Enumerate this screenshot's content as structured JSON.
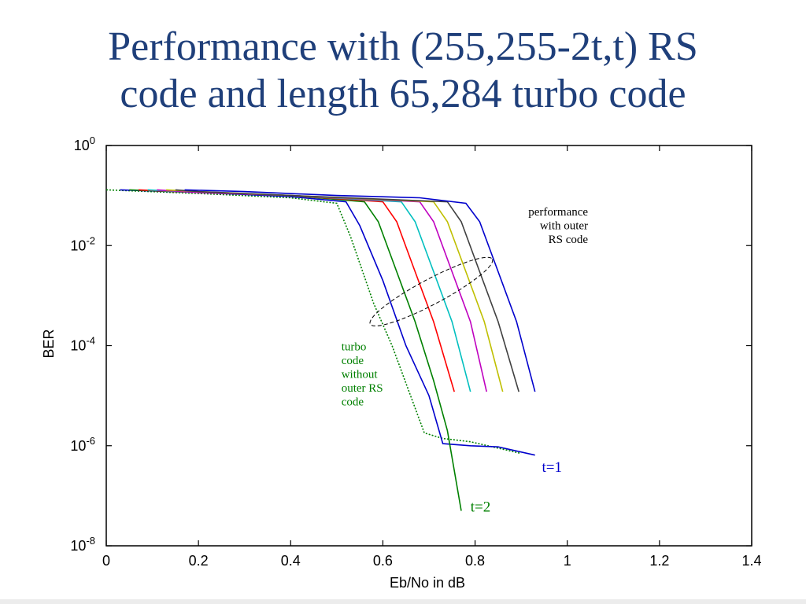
{
  "slide": {
    "title_line1": "Performance with (255,255-2t,t) RS",
    "title_line2": "code and length 65,284 turbo code"
  },
  "colors": {
    "title": "#1f3f7a",
    "turbo_only": "#008000"
  },
  "chart_data": {
    "type": "line",
    "xlabel": "Eb/No in dB",
    "ylabel": "BER",
    "xlim": [
      0,
      1.4
    ],
    "yscale": "log",
    "ylim": [
      1e-08,
      1
    ],
    "xticks": [
      "0",
      "0.2",
      "0.4",
      "0.6",
      "0.8",
      "1",
      "1.2",
      "1.4"
    ],
    "yticks": [
      {
        "base": "10",
        "exp": "0"
      },
      {
        "base": "10",
        "exp": "-2"
      },
      {
        "base": "10",
        "exp": "-4"
      },
      {
        "base": "10",
        "exp": "-6"
      },
      {
        "base": "10",
        "exp": "-8"
      }
    ],
    "grid": false,
    "series": [
      {
        "color": "#008000",
        "dash": "dotted",
        "points": [
          [
            0.0,
            0.13
          ],
          [
            0.2,
            0.11
          ],
          [
            0.4,
            0.09
          ],
          [
            0.5,
            0.07
          ],
          [
            0.53,
            0.015
          ],
          [
            0.58,
            0.0007
          ],
          [
            0.62,
            0.0001
          ],
          [
            0.66,
            1e-05
          ],
          [
            0.69,
            1.8e-06
          ],
          [
            0.73,
            1.4e-06
          ],
          [
            0.79,
            1.2e-06
          ],
          [
            0.9,
            7e-07
          ]
        ]
      },
      {
        "color": "#0000cc",
        "dash": "solid",
        "points": [
          [
            0.03,
            0.13
          ],
          [
            0.2,
            0.115
          ],
          [
            0.4,
            0.095
          ],
          [
            0.52,
            0.075
          ],
          [
            0.55,
            0.025
          ],
          [
            0.6,
            0.002
          ],
          [
            0.65,
            0.0001
          ],
          [
            0.7,
            1e-05
          ],
          [
            0.73,
            1.1e-06
          ],
          [
            0.79,
            1e-06
          ],
          [
            0.85,
            9.5e-07
          ],
          [
            0.93,
            6.5e-07
          ]
        ]
      },
      {
        "color": "#008000",
        "dash": "solid",
        "points": [
          [
            0.05,
            0.13
          ],
          [
            0.2,
            0.115
          ],
          [
            0.4,
            0.1
          ],
          [
            0.56,
            0.075
          ],
          [
            0.59,
            0.03
          ],
          [
            0.63,
            0.003
          ],
          [
            0.67,
            0.0003
          ],
          [
            0.71,
            2e-05
          ],
          [
            0.74,
            2e-06
          ],
          [
            0.77,
            5e-08
          ]
        ]
      },
      {
        "color": "#ff0000",
        "dash": "solid",
        "points": [
          [
            0.07,
            0.13
          ],
          [
            0.2,
            0.115
          ],
          [
            0.4,
            0.1
          ],
          [
            0.6,
            0.075
          ],
          [
            0.63,
            0.03
          ],
          [
            0.67,
            0.003
          ],
          [
            0.71,
            0.0003
          ],
          [
            0.755,
            1.2e-05
          ]
        ]
      },
      {
        "color": "#00bfbf",
        "dash": "solid",
        "points": [
          [
            0.09,
            0.13
          ],
          [
            0.2,
            0.115
          ],
          [
            0.4,
            0.1
          ],
          [
            0.64,
            0.075
          ],
          [
            0.67,
            0.03
          ],
          [
            0.71,
            0.003
          ],
          [
            0.75,
            0.0003
          ],
          [
            0.79,
            1.2e-05
          ]
        ]
      },
      {
        "color": "#bf00bf",
        "dash": "solid",
        "points": [
          [
            0.11,
            0.13
          ],
          [
            0.2,
            0.115
          ],
          [
            0.4,
            0.1
          ],
          [
            0.68,
            0.075
          ],
          [
            0.71,
            0.03
          ],
          [
            0.75,
            0.003
          ],
          [
            0.79,
            0.0003
          ],
          [
            0.825,
            1.2e-05
          ]
        ]
      },
      {
        "color": "#bfbf00",
        "dash": "solid",
        "points": [
          [
            0.13,
            0.13
          ],
          [
            0.2,
            0.12
          ],
          [
            0.4,
            0.1
          ],
          [
            0.71,
            0.075
          ],
          [
            0.74,
            0.03
          ],
          [
            0.78,
            0.003
          ],
          [
            0.82,
            0.0003
          ],
          [
            0.86,
            1.2e-05
          ]
        ]
      },
      {
        "color": "#404040",
        "dash": "solid",
        "points": [
          [
            0.15,
            0.13
          ],
          [
            0.2,
            0.12
          ],
          [
            0.4,
            0.1
          ],
          [
            0.74,
            0.075
          ],
          [
            0.77,
            0.03
          ],
          [
            0.81,
            0.003
          ],
          [
            0.85,
            0.0003
          ],
          [
            0.895,
            1.2e-05
          ]
        ]
      },
      {
        "color": "#0000cc",
        "dash": "solid",
        "points": [
          [
            0.17,
            0.13
          ],
          [
            0.3,
            0.12
          ],
          [
            0.5,
            0.1
          ],
          [
            0.68,
            0.09
          ],
          [
            0.78,
            0.07
          ],
          [
            0.81,
            0.03
          ],
          [
            0.85,
            0.003
          ],
          [
            0.89,
            0.0003
          ],
          [
            0.93,
            1.2e-05
          ]
        ]
      }
    ],
    "ellipse": {
      "cx": 0.705,
      "cy": 0.0012,
      "rx_dx": 0.15,
      "ry_px": 16,
      "angle_deg": -28
    },
    "annotations": [
      {
        "lines": [
          "performance",
          "with outer",
          "RS code"
        ],
        "x": 1.045,
        "y": 0.04,
        "anchor": "end",
        "color": "#000000"
      },
      {
        "lines": [
          "turbo",
          "code",
          "without",
          "outer RS",
          "code"
        ],
        "x": 0.51,
        "y": 8e-05,
        "anchor": "start",
        "color": "#008000"
      },
      {
        "lines": [
          "t=1"
        ],
        "x": 0.945,
        "y": 3e-07,
        "anchor": "start",
        "color": "#0000cc"
      },
      {
        "lines": [
          "t=2"
        ],
        "x": 0.79,
        "y": 4.8e-08,
        "anchor": "start",
        "color": "#008000"
      }
    ]
  }
}
